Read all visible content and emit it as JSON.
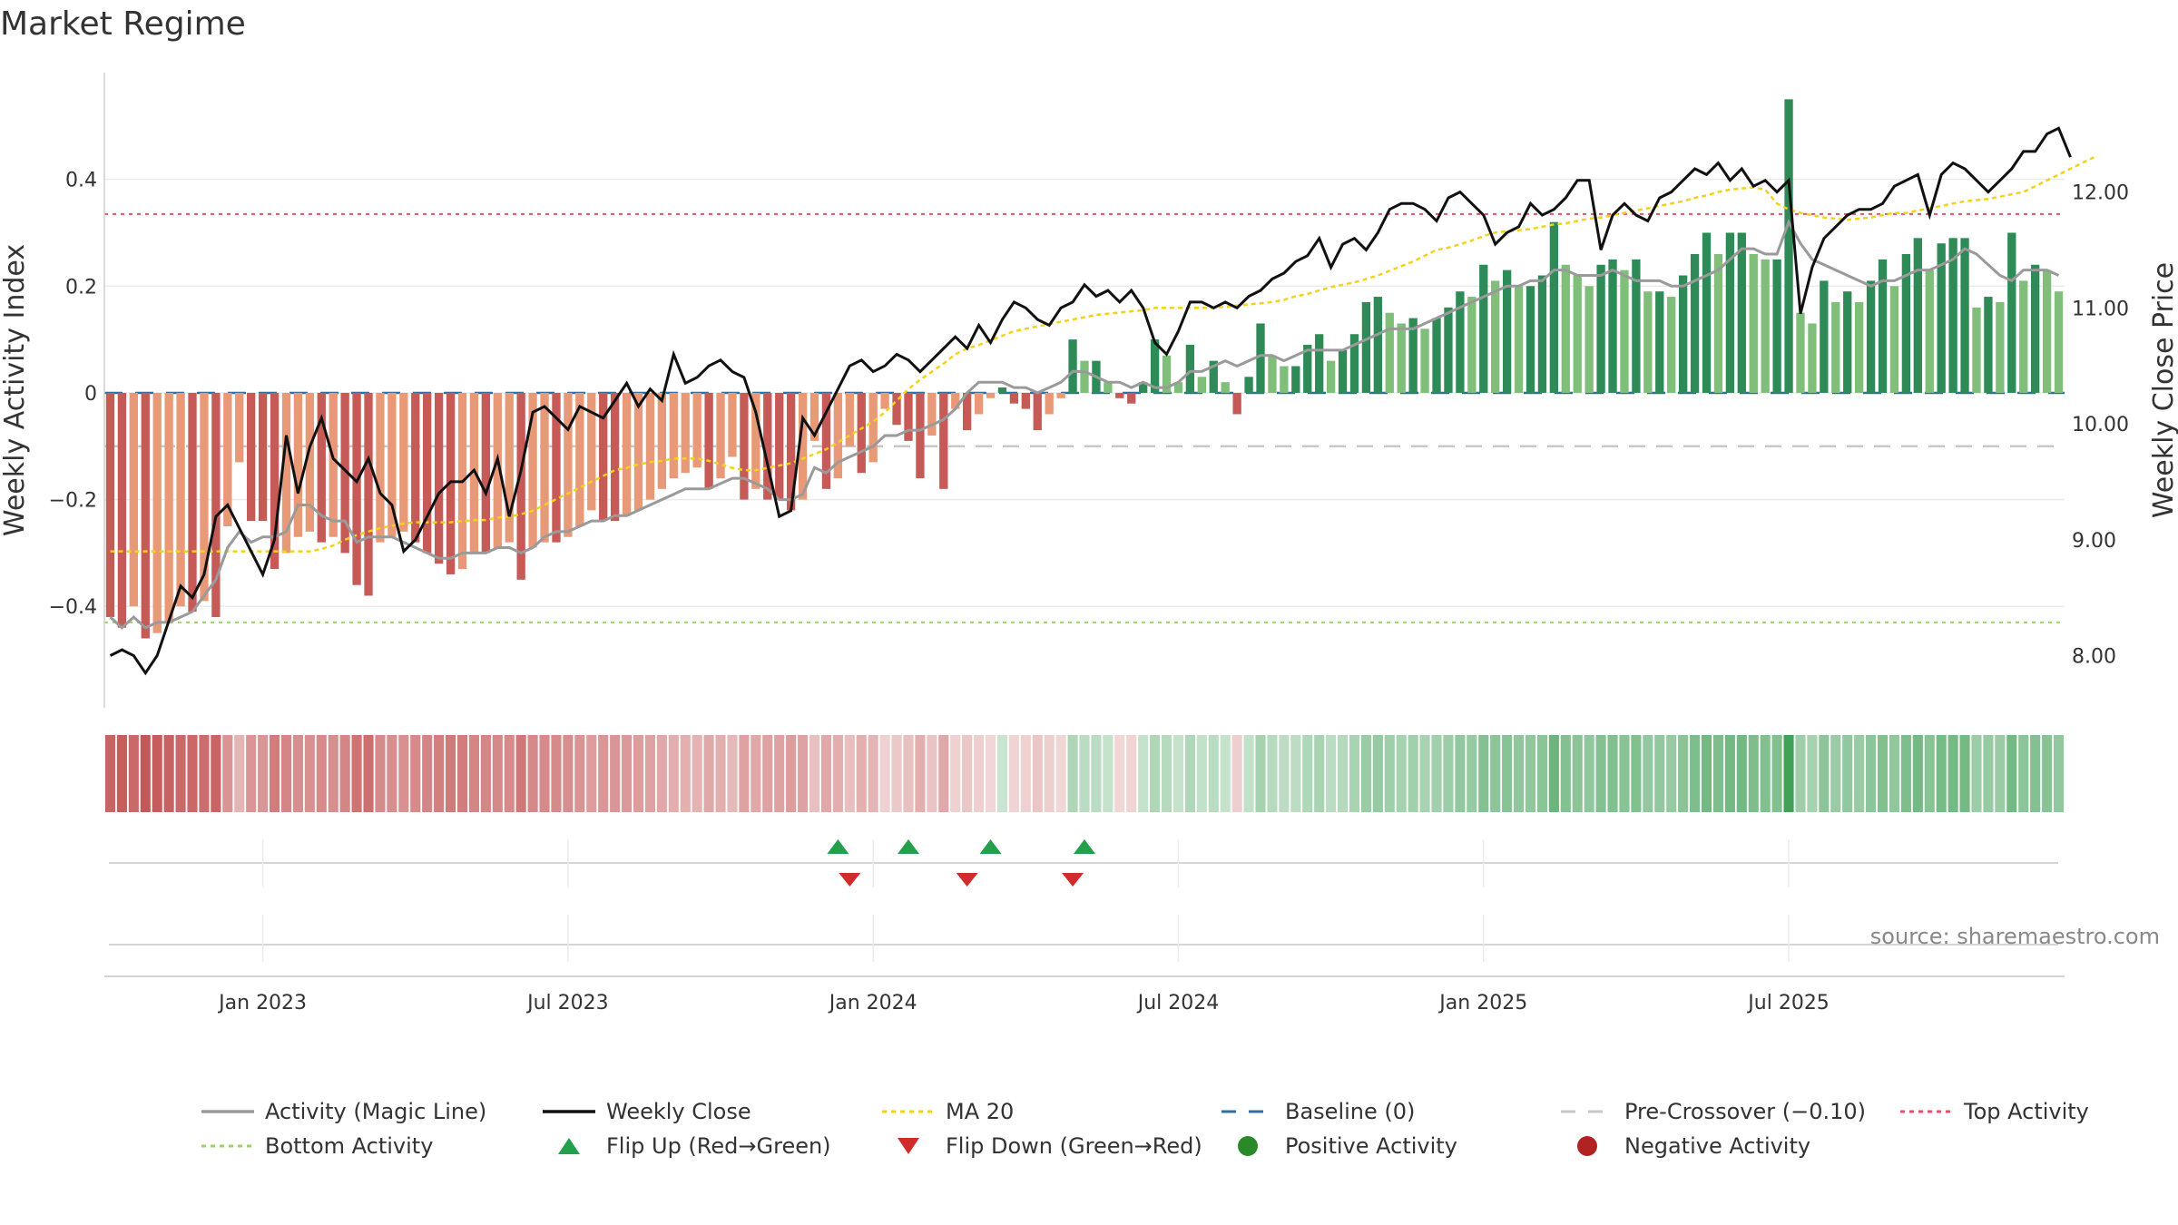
{
  "chart_data": {
    "title": "Market Regime",
    "type": "bar",
    "y_left_label": "Weekly Activity Index",
    "y_right_label": "Weekly Close Price",
    "y_left_ticks": [
      "0.4",
      "0.2",
      "0",
      "−0.2",
      "−0.4"
    ],
    "y_left_tick_values": [
      0.4,
      0.2,
      0,
      -0.2,
      -0.4
    ],
    "y_left_range": [
      -0.59,
      0.6
    ],
    "y_right_ticks": [
      "12.00",
      "11.00",
      "10.00",
      "9.00",
      "8.00"
    ],
    "y_right_tick_values": [
      12,
      11,
      10,
      9,
      8
    ],
    "y_right_range": [
      7.55,
      13.03
    ],
    "x_ticks": [
      "Jan 2023",
      "Jul 2023",
      "Jan 2024",
      "Jul 2024",
      "Jan 2025",
      "Jul 2025"
    ],
    "x_tick_weeks": [
      13.5,
      39.5,
      65.5,
      91.5,
      117.5,
      143.5
    ],
    "source": "source: sharemaestro.com",
    "reference_lines": {
      "top_activity": 0.335,
      "bottom_activity": -0.43,
      "baseline": 0,
      "pre_crossover": -0.1
    },
    "activity": [
      -0.42,
      -0.44,
      -0.4,
      -0.46,
      -0.45,
      -0.43,
      -0.4,
      -0.41,
      -0.39,
      -0.42,
      -0.25,
      -0.13,
      -0.24,
      -0.24,
      -0.33,
      -0.3,
      -0.27,
      -0.26,
      -0.28,
      -0.27,
      -0.3,
      -0.36,
      -0.38,
      -0.28,
      -0.27,
      -0.26,
      -0.28,
      -0.3,
      -0.32,
      -0.34,
      -0.33,
      -0.3,
      -0.3,
      -0.29,
      -0.28,
      -0.35,
      -0.29,
      -0.28,
      -0.28,
      -0.27,
      -0.25,
      -0.22,
      -0.24,
      -0.24,
      -0.23,
      -0.22,
      -0.2,
      -0.18,
      -0.16,
      -0.15,
      -0.14,
      -0.18,
      -0.16,
      -0.12,
      -0.2,
      -0.18,
      -0.2,
      -0.2,
      -0.22,
      -0.2,
      -0.09,
      -0.18,
      -0.16,
      -0.1,
      -0.15,
      -0.13,
      -0.03,
      -0.06,
      -0.09,
      -0.16,
      -0.08,
      -0.18,
      -0.03,
      -0.07,
      -0.04,
      -0.01,
      0.01,
      -0.02,
      -0.03,
      -0.07,
      -0.04,
      -0.01,
      0.1,
      0.06,
      0.06,
      0.02,
      -0.01,
      -0.02,
      0.02,
      0.1,
      0.07,
      0.02,
      0.09,
      0.03,
      0.06,
      0.02,
      -0.04,
      0.03,
      0.13,
      0.07,
      0.05,
      0.05,
      0.09,
      0.11,
      0.06,
      0.08,
      0.11,
      0.17,
      0.18,
      0.15,
      0.13,
      0.14,
      0.12,
      0.14,
      0.16,
      0.19,
      0.18,
      0.24,
      0.21,
      0.23,
      0.2,
      0.2,
      0.22,
      0.32,
      0.24,
      0.22,
      0.2,
      0.24,
      0.25,
      0.23,
      0.25,
      0.19,
      0.19,
      0.18,
      0.22,
      0.26,
      0.3,
      0.26,
      0.3,
      0.3,
      0.26,
      0.25,
      0.25,
      0.55,
      0.15,
      0.13,
      0.21,
      0.17,
      0.19,
      0.17,
      0.21,
      0.25,
      0.2,
      0.26,
      0.29,
      0.23,
      0.28,
      0.29,
      0.29,
      0.16,
      0.18,
      0.17,
      0.3,
      0.21,
      0.24,
      0.23,
      0.19
    ],
    "magic_line": [
      -0.42,
      -0.44,
      -0.42,
      -0.44,
      -0.43,
      -0.43,
      -0.42,
      -0.41,
      -0.38,
      -0.35,
      -0.29,
      -0.26,
      -0.28,
      -0.27,
      -0.27,
      -0.26,
      -0.21,
      -0.21,
      -0.23,
      -0.24,
      -0.24,
      -0.28,
      -0.27,
      -0.27,
      -0.27,
      -0.28,
      -0.29,
      -0.3,
      -0.31,
      -0.31,
      -0.3,
      -0.3,
      -0.3,
      -0.29,
      -0.29,
      -0.3,
      -0.29,
      -0.27,
      -0.26,
      -0.26,
      -0.25,
      -0.24,
      -0.24,
      -0.23,
      -0.23,
      -0.22,
      -0.21,
      -0.2,
      -0.19,
      -0.18,
      -0.18,
      -0.18,
      -0.17,
      -0.16,
      -0.16,
      -0.17,
      -0.18,
      -0.2,
      -0.2,
      -0.19,
      -0.14,
      -0.15,
      -0.13,
      -0.12,
      -0.11,
      -0.1,
      -0.08,
      -0.08,
      -0.07,
      -0.07,
      -0.06,
      -0.05,
      -0.03,
      0.0,
      0.02,
      0.02,
      0.02,
      0.01,
      0.01,
      0.0,
      0.01,
      0.02,
      0.04,
      0.04,
      0.03,
      0.02,
      0.02,
      0.01,
      0.02,
      0.01,
      0.01,
      0.02,
      0.04,
      0.04,
      0.05,
      0.06,
      0.05,
      0.06,
      0.07,
      0.07,
      0.06,
      0.07,
      0.08,
      0.08,
      0.08,
      0.08,
      0.09,
      0.1,
      0.11,
      0.12,
      0.12,
      0.12,
      0.13,
      0.14,
      0.15,
      0.16,
      0.17,
      0.18,
      0.19,
      0.2,
      0.2,
      0.21,
      0.21,
      0.23,
      0.23,
      0.22,
      0.22,
      0.22,
      0.23,
      0.22,
      0.21,
      0.21,
      0.21,
      0.2,
      0.2,
      0.21,
      0.22,
      0.23,
      0.25,
      0.27,
      0.27,
      0.26,
      0.26,
      0.32,
      0.28,
      0.25,
      0.24,
      0.23,
      0.22,
      0.21,
      0.2,
      0.21,
      0.21,
      0.22,
      0.23,
      0.23,
      0.24,
      0.25,
      0.27,
      0.26,
      0.24,
      0.22,
      0.21,
      0.23,
      0.23,
      0.23,
      0.22
    ],
    "weekly_close": [
      8.0,
      8.05,
      8.0,
      7.85,
      8.0,
      8.3,
      8.6,
      8.5,
      8.7,
      9.2,
      9.3,
      9.1,
      8.9,
      8.7,
      9.0,
      9.9,
      9.4,
      9.8,
      10.05,
      9.7,
      9.6,
      9.5,
      9.7,
      9.4,
      9.3,
      8.9,
      9.0,
      9.2,
      9.4,
      9.5,
      9.5,
      9.6,
      9.4,
      9.7,
      9.2,
      9.6,
      10.1,
      10.15,
      10.05,
      9.95,
      10.15,
      10.1,
      10.05,
      10.2,
      10.35,
      10.15,
      10.3,
      10.2,
      10.6,
      10.35,
      10.4,
      10.5,
      10.55,
      10.45,
      10.4,
      10.1,
      9.65,
      9.2,
      9.25,
      10.05,
      9.9,
      10.1,
      10.3,
      10.5,
      10.55,
      10.45,
      10.5,
      10.6,
      10.55,
      10.45,
      10.55,
      10.65,
      10.75,
      10.65,
      10.85,
      10.7,
      10.9,
      11.05,
      11.0,
      10.9,
      10.85,
      11.0,
      11.05,
      11.2,
      11.1,
      11.15,
      11.05,
      11.15,
      11.0,
      10.7,
      10.6,
      10.8,
      11.05,
      11.05,
      11.0,
      11.05,
      11.0,
      11.1,
      11.15,
      11.25,
      11.3,
      11.4,
      11.45,
      11.6,
      11.35,
      11.55,
      11.6,
      11.5,
      11.65,
      11.85,
      11.9,
      11.9,
      11.85,
      11.75,
      11.95,
      12.0,
      11.9,
      11.8,
      11.55,
      11.65,
      11.7,
      11.9,
      11.8,
      11.85,
      11.95,
      12.1,
      12.1,
      11.5,
      11.8,
      11.9,
      11.8,
      11.75,
      11.95,
      12.0,
      12.1,
      12.2,
      12.15,
      12.25,
      12.1,
      12.2,
      12.05,
      12.1,
      12.0,
      12.1,
      10.95,
      11.35,
      11.6,
      11.7,
      11.8,
      11.85,
      11.85,
      11.9,
      12.05,
      12.1,
      12.15,
      11.8,
      12.15,
      12.25,
      12.2,
      12.1,
      12.0,
      12.1,
      12.2,
      12.35,
      12.35,
      12.5,
      12.55,
      12.3
    ],
    "ma20": [
      8.9,
      8.9,
      8.9,
      8.9,
      8.9,
      8.9,
      8.9,
      8.9,
      8.9,
      8.9,
      8.9,
      8.9,
      8.9,
      8.9,
      8.9,
      8.9,
      8.9,
      8.9,
      8.92,
      8.95,
      9.0,
      9.04,
      9.07,
      9.1,
      9.12,
      9.14,
      9.15,
      9.15,
      9.15,
      9.15,
      9.16,
      9.17,
      9.17,
      9.19,
      9.2,
      9.22,
      9.25,
      9.3,
      9.35,
      9.4,
      9.45,
      9.5,
      9.55,
      9.6,
      9.62,
      9.65,
      9.67,
      9.68,
      9.7,
      9.7,
      9.7,
      9.68,
      9.65,
      9.62,
      9.6,
      9.6,
      9.62,
      9.64,
      9.66,
      9.7,
      9.74,
      9.78,
      9.84,
      9.9,
      9.96,
      10.02,
      10.1,
      10.2,
      10.3,
      10.38,
      10.45,
      10.52,
      10.6,
      10.65,
      10.68,
      10.72,
      10.76,
      10.8,
      10.82,
      10.84,
      10.86,
      10.88,
      10.9,
      10.92,
      10.94,
      10.95,
      10.96,
      10.97,
      10.98,
      11.0,
      11.0,
      11.0,
      11.0,
      11.0,
      11.0,
      11.01,
      11.02,
      11.03,
      11.04,
      11.05,
      11.07,
      11.1,
      11.12,
      11.15,
      11.18,
      11.2,
      11.22,
      11.25,
      11.28,
      11.32,
      11.36,
      11.4,
      11.45,
      11.5,
      11.52,
      11.55,
      11.58,
      11.62,
      11.65,
      11.66,
      11.67,
      11.68,
      11.7,
      11.72,
      11.73,
      11.75,
      11.77,
      11.78,
      11.8,
      11.82,
      11.84,
      11.86,
      11.88,
      11.9,
      11.92,
      11.95,
      11.97,
      12.0,
      12.02,
      12.03,
      12.04,
      12.02,
      11.9,
      11.85,
      11.82,
      11.8,
      11.78,
      11.77,
      11.76,
      11.77,
      11.78,
      11.8,
      11.82,
      11.82,
      11.84,
      11.86,
      11.88,
      11.9,
      11.92,
      11.93,
      11.94,
      11.96,
      11.98,
      12.0,
      12.05,
      12.1,
      12.15,
      12.2,
      12.25,
      12.3
    ],
    "flip_up_weeks": [
      62,
      68,
      75,
      83
    ],
    "flip_down_weeks": [
      63,
      73,
      82
    ]
  },
  "legend": [
    {
      "label": "Activity (Magic Line)",
      "symbol": "line",
      "color": "#9a9a9a"
    },
    {
      "label": "Weekly Close",
      "symbol": "line",
      "color": "#111111"
    },
    {
      "label": "MA 20",
      "symbol": "dotted",
      "color": "#f2d21b"
    },
    {
      "label": "Baseline (0)",
      "symbol": "dashed",
      "color": "#2f6ea3"
    },
    {
      "label": "Pre-Crossover (−0.10)",
      "symbol": "dashed",
      "color": "#c8c8c8"
    },
    {
      "label": "Top Activity",
      "symbol": "dotted",
      "color": "#e0526b"
    },
    {
      "label": "Bottom Activity",
      "symbol": "dotted",
      "color": "#9ad36a"
    },
    {
      "label": "Flip Up (Red→Green)",
      "symbol": "triangle-up",
      "color": "#22a04b"
    },
    {
      "label": "Flip Down (Green→Red)",
      "symbol": "triangle-down",
      "color": "#d22b2b"
    },
    {
      "label": "Positive Activity",
      "symbol": "dot",
      "color": "#2a8a2a"
    },
    {
      "label": "Negative Activity",
      "symbol": "dot",
      "color": "#b22222"
    }
  ],
  "colors": {
    "neg_dark": "#c55a57",
    "neg_light": "#e89a78",
    "pos_dark": "#2e8b57",
    "pos_light": "#7fbf7a",
    "grid": "#ebebeb"
  }
}
